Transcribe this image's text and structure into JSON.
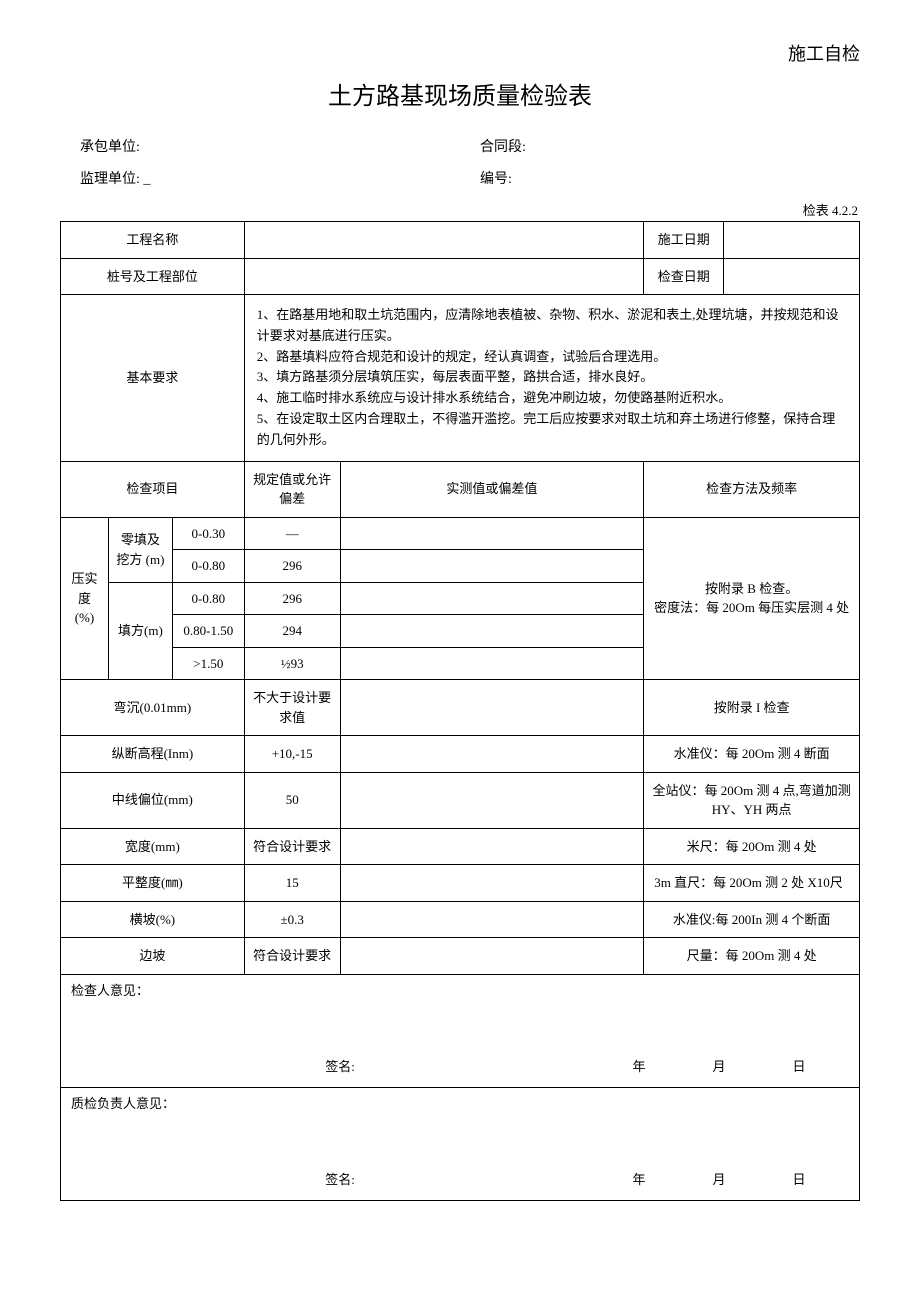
{
  "header_tag": "施工自检",
  "title": "土方路基现场质量检验表",
  "meta": {
    "contractor_label": "承包单位:",
    "section_label": "合同段:",
    "supervisor_label": "监理单位:  _",
    "number_label": "编号:"
  },
  "table_ref": "检表 4.2.2",
  "info": {
    "project_name_label": "工程名称",
    "construction_date_label": "施工日期",
    "stake_label": "桩号及工程部位",
    "check_date_label": "检查日期"
  },
  "basic_req": {
    "label": "基本要求",
    "text": "1、在路基用地和取土坑范围内，应清除地表植被、杂物、积水、淤泥和表土,处理坑塘，并按规范和设计要求对基底进行压实。\n2、路基填料应符合规范和设计的规定，经认真调查，试验后合理选用。\n3、填方路基须分层填筑压实，每层表面平整，路拱合适，排水良好。\n4、施工临时排水系统应与设计排水系统结合，避免冲刷边坡，勿使路基附近积水。\n5、在设定取土区内合理取土，不得滥开滥挖。完工后应按要求对取土坑和弃土场进行修整，保持合理的几何外形。"
  },
  "headers": {
    "check_item": "检查项目",
    "spec_value": "规定值或允许偏差",
    "measured": "实测值或偏差值",
    "method": "检查方法及频率"
  },
  "compaction": {
    "label": "压实度 (%)",
    "zero_fill_label": "零填及挖方 (m)",
    "fill_label": "填方(m)",
    "rows": [
      {
        "range": "0-0.30",
        "spec": "—"
      },
      {
        "range": "0-0.80",
        "spec": "296"
      },
      {
        "range": "0-0.80",
        "spec": "296"
      },
      {
        "range": "0.80-1.50",
        "spec": "294"
      },
      {
        "range": ">1.50",
        "spec": "½93"
      }
    ],
    "method": "按附录 B 检查。\n密度法：每 20Om 每压实层测 4 处"
  },
  "items": [
    {
      "name": "弯沉(0.01mm)",
      "spec": "不大于设计要求值",
      "method": "按附录 I 检查"
    },
    {
      "name": "纵断高程(Inm)",
      "spec": "+10,-15",
      "method": "水准仪：每 20Om 测 4 断面"
    },
    {
      "name": "中线偏位(mm)",
      "spec": "50",
      "method": "全站仪：每 20Om 测 4 点,弯道加测 HY、YH 两点"
    },
    {
      "name": "宽度(mm)",
      "spec": "符合设计要求",
      "method": "米尺：每 20Om 测 4 处"
    },
    {
      "name": "平整度(㎜)",
      "spec": "15",
      "method": "3m 直尺：每 20Om 测 2 处 X10尺"
    },
    {
      "name": "横坡(%)",
      "spec": "±0.3",
      "method": "水准仪:每 200In 测 4 个断面"
    },
    {
      "name": "边坡",
      "spec": "符合设计要求",
      "method": "尺量：每 20Om 测 4 处"
    }
  ],
  "signatures": {
    "inspector_label": "检查人意见：",
    "qc_label": "质检负责人意见：",
    "sign_label": "签名:",
    "year": "年",
    "month": "月",
    "day": "日"
  }
}
